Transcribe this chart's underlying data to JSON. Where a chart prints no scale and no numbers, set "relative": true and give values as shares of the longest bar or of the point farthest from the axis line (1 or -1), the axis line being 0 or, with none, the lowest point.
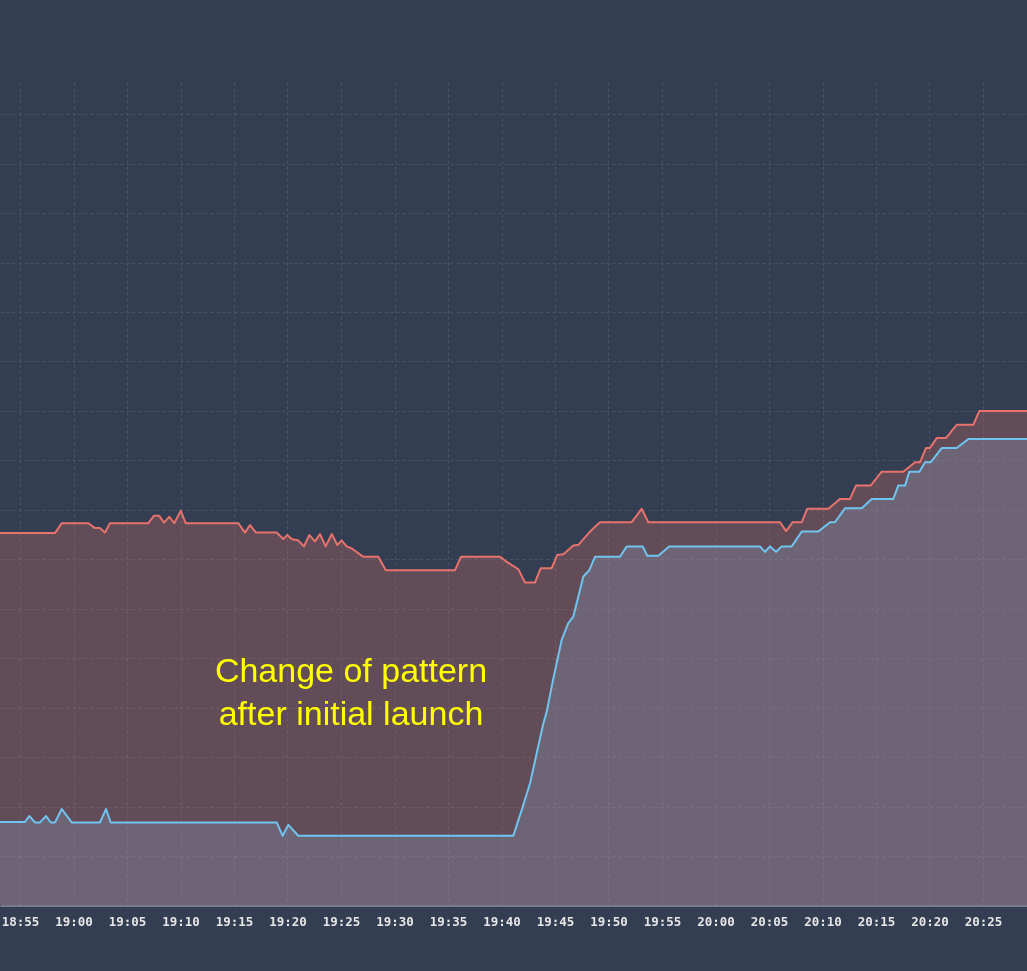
{
  "chart_data": {
    "type": "area",
    "relative": true,
    "grid": true,
    "tick_labels": "x",
    "annotations": [
      "Change of pattern after initial launch"
    ],
    "xlim": [
      18.8855,
      20.4852
    ],
    "xticks": [
      {
        "value": 18.9167,
        "label": "18:55"
      },
      {
        "value": 19,
        "label": "19:00"
      },
      {
        "value": 19.0833,
        "label": "19:05"
      },
      {
        "value": 19.1667,
        "label": "19:10"
      },
      {
        "value": 19.25,
        "label": "19:15"
      },
      {
        "value": 19.3333,
        "label": "19:20"
      },
      {
        "value": 19.4167,
        "label": "19:25"
      },
      {
        "value": 19.5,
        "label": "19:30"
      },
      {
        "value": 19.5833,
        "label": "19:35"
      },
      {
        "value": 19.6667,
        "label": "19:40"
      },
      {
        "value": 19.75,
        "label": "19:45"
      },
      {
        "value": 19.8333,
        "label": "19:50"
      },
      {
        "value": 19.9167,
        "label": "19:55"
      },
      {
        "value": 20,
        "label": "20:00"
      },
      {
        "value": 20.0833,
        "label": "20:05"
      },
      {
        "value": 20.1667,
        "label": "20:10"
      },
      {
        "value": 20.25,
        "label": "20:15"
      },
      {
        "value": 20.3333,
        "label": "20:20"
      },
      {
        "value": 20.4167,
        "label": "20:25"
      }
    ],
    "series": [
      {
        "color": "#70c4f0",
        "x": [
          18.8855,
          18.9244,
          18.9311,
          18.94,
          18.9478,
          18.9572,
          18.9645,
          18.9712,
          18.9816,
          18.9972,
          19.0413,
          19.0506,
          19.0579,
          19.3165,
          19.3258,
          19.3346,
          19.3502,
          19.685,
          19.6981,
          19.7111,
          19.7318,
          19.7371,
          19.7474,
          19.7604,
          19.7707,
          19.7785,
          19.7941,
          19.8034,
          19.8123,
          19.8512,
          19.8617,
          19.8866,
          19.8938,
          19.9109,
          19.928,
          20.0693,
          20.0771,
          20.0849,
          20.0942,
          20.1031,
          20.1187,
          20.1343,
          20.1601,
          20.1784,
          20.1861,
          20.2017,
          20.2277,
          20.2433,
          20.2769,
          20.2847,
          20.2952,
          20.3019,
          20.3175,
          20.3263,
          20.3352,
          20.3524,
          20.3757,
          20.3938,
          20.4852
        ],
        "values": [
          0.169,
          0.169,
          0.181,
          0.168,
          0.168,
          0.181,
          0.168,
          0.168,
          0.195,
          0.168,
          0.168,
          0.195,
          0.168,
          0.168,
          0.141,
          0.163,
          0.141,
          0.141,
          0.193,
          0.247,
          0.368,
          0.392,
          0.459,
          0.537,
          0.571,
          0.584,
          0.665,
          0.678,
          0.705,
          0.705,
          0.726,
          0.726,
          0.707,
          0.707,
          0.726,
          0.726,
          0.715,
          0.726,
          0.715,
          0.726,
          0.726,
          0.756,
          0.756,
          0.775,
          0.775,
          0.803,
          0.803,
          0.822,
          0.822,
          0.849,
          0.849,
          0.877,
          0.877,
          0.896,
          0.896,
          0.925,
          0.925,
          0.943,
          0.943
        ]
      },
      {
        "color": "#e8736d",
        "x": [
          18.8855,
          18.9712,
          18.9816,
          19.023,
          19.0335,
          19.0413,
          19.0491,
          19.0568,
          19.1165,
          19.1254,
          19.1336,
          19.1409,
          19.1492,
          19.157,
          19.167,
          19.1748,
          19.2567,
          19.2671,
          19.2749,
          19.2843,
          19.3165,
          19.3268,
          19.333,
          19.3399,
          19.3502,
          19.359,
          19.3673,
          19.3762,
          19.3839,
          19.3928,
          19.4022,
          19.4109,
          19.4177,
          19.4255,
          19.4333,
          19.4514,
          19.4748,
          19.4863,
          19.5942,
          19.6036,
          19.6643,
          19.6747,
          19.6928,
          19.7033,
          19.7188,
          19.7277,
          19.7448,
          19.7536,
          19.7629,
          19.7785,
          19.7863,
          19.8045,
          19.8201,
          19.8695,
          19.885,
          19.8953,
          20.1005,
          20.1098,
          20.1202,
          20.1343,
          20.143,
          20.1757,
          20.1939,
          20.2095,
          20.2188,
          20.2417,
          20.2588,
          20.2925,
          20.3107,
          20.3185,
          20.3279,
          20.3341,
          20.3445,
          20.359,
          20.3757,
          20.4016,
          20.4109,
          20.4852
        ],
        "values": [
          0.753,
          0.753,
          0.773,
          0.773,
          0.763,
          0.763,
          0.754,
          0.773,
          0.773,
          0.788,
          0.788,
          0.774,
          0.786,
          0.773,
          0.798,
          0.773,
          0.773,
          0.754,
          0.769,
          0.754,
          0.754,
          0.741,
          0.749,
          0.741,
          0.738,
          0.726,
          0.749,
          0.736,
          0.751,
          0.726,
          0.751,
          0.729,
          0.738,
          0.726,
          0.722,
          0.705,
          0.705,
          0.678,
          0.678,
          0.705,
          0.705,
          0.695,
          0.68,
          0.653,
          0.653,
          0.682,
          0.682,
          0.709,
          0.71,
          0.728,
          0.729,
          0.756,
          0.775,
          0.775,
          0.802,
          0.775,
          0.775,
          0.757,
          0.775,
          0.775,
          0.802,
          0.802,
          0.822,
          0.822,
          0.849,
          0.849,
          0.877,
          0.877,
          0.896,
          0.896,
          0.925,
          0.925,
          0.945,
          0.945,
          0.972,
          0.972,
          1.0,
          1.0
        ]
      }
    ]
  }
}
